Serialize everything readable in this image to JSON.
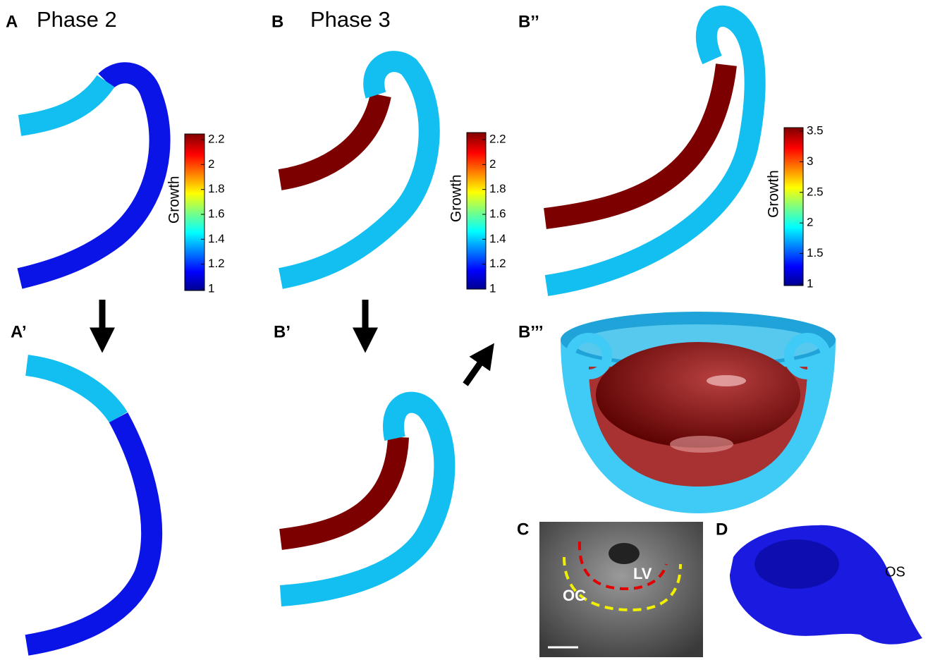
{
  "panels": {
    "a": {
      "label": "A",
      "title": "Phase 2"
    },
    "b": {
      "label": "B",
      "title": "Phase 3"
    },
    "a_prime": {
      "label": "A’"
    },
    "b_prime": {
      "label": "B’"
    },
    "b_double_prime": {
      "label": "B’’"
    },
    "b_triple_prime": {
      "label": "B’’’"
    },
    "c": {
      "label": "C"
    },
    "d": {
      "label": "D"
    }
  },
  "colorbars": [
    {
      "title": "Growth",
      "ticks": [
        "2.2",
        "2",
        "1.8",
        "1.6",
        "1.4",
        "1.2",
        "1"
      ]
    },
    {
      "title": "Growth",
      "ticks": [
        "2.2",
        "2",
        "1.8",
        "1.6",
        "1.4",
        "1.2",
        "1"
      ]
    },
    {
      "title": "Growth",
      "ticks": [
        "3.5",
        "3",
        "2.5",
        "2",
        "1.5",
        "1"
      ]
    }
  ],
  "annotations": {
    "lv": "LV",
    "oc": "OC",
    "os": "OS"
  }
}
